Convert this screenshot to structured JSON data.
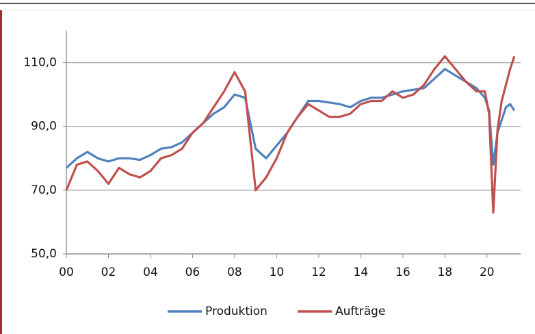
{
  "chart_data": {
    "type": "line",
    "x": [
      0,
      0.5,
      1,
      1.5,
      2,
      2.5,
      3,
      3.5,
      4,
      4.5,
      5,
      5.5,
      6,
      6.5,
      7,
      7.5,
      8,
      8.5,
      9,
      9.5,
      10,
      10.5,
      11,
      11.5,
      12,
      12.5,
      13,
      13.5,
      14,
      14.5,
      15,
      15.5,
      16,
      16.5,
      17,
      17.5,
      18,
      18.5,
      19,
      19.5,
      19.9,
      20.1,
      20.3,
      20.5,
      20.7,
      20.9,
      21.1,
      21.3
    ],
    "series": [
      {
        "name": "Produktion",
        "color": "#4f81bd",
        "values": [
          77,
          80,
          82,
          80,
          79,
          80,
          80,
          79.5,
          81,
          83,
          83.5,
          85,
          88,
          91,
          94,
          96,
          100,
          99,
          83,
          80,
          84,
          88,
          93,
          98,
          98,
          97.5,
          97,
          96,
          98,
          99,
          99,
          100,
          101,
          101.5,
          102,
          105,
          108,
          106,
          104,
          102,
          99,
          95,
          78,
          88,
          92,
          96,
          97,
          95
        ]
      },
      {
        "name": "Aufträge",
        "color": "#c0504d",
        "values": [
          70,
          78,
          79,
          76,
          72,
          77,
          75,
          74,
          76,
          80,
          81,
          83,
          88,
          91,
          96,
          101,
          107,
          101,
          70,
          74,
          80,
          88,
          93,
          97,
          95,
          93,
          93,
          94,
          97,
          98,
          98,
          101,
          99,
          100,
          103,
          108,
          112,
          108,
          104,
          101,
          101,
          94,
          63,
          89,
          98,
          103,
          108,
          112
        ]
      }
    ],
    "xlim": [
      0,
      21.6
    ],
    "xticks": [
      {
        "value": 0,
        "label": "00"
      },
      {
        "value": 2,
        "label": "02"
      },
      {
        "value": 4,
        "label": "04"
      },
      {
        "value": 6,
        "label": "06"
      },
      {
        "value": 8,
        "label": "08"
      },
      10,
      12,
      14,
      16,
      18,
      20
    ],
    "ylim": [
      50,
      120
    ],
    "yticks": [
      {
        "value": 50,
        "label": "50,0"
      },
      {
        "value": 70,
        "label": "70,0"
      },
      {
        "value": 90,
        "label": "90,0"
      },
      {
        "value": 110,
        "label": "110,0"
      }
    ],
    "grid": true,
    "legend": "bottom"
  }
}
